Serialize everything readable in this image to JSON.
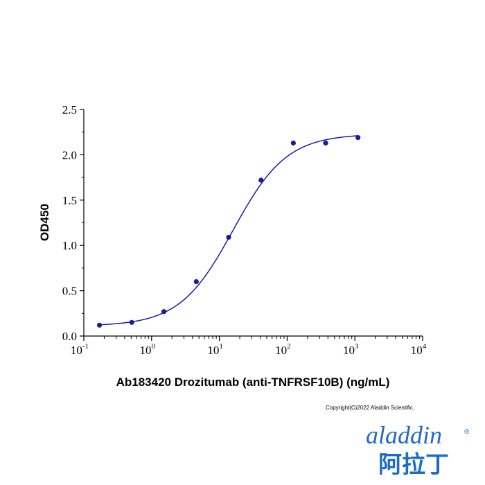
{
  "chart_data": {
    "type": "scatter",
    "title": "",
    "xlabel": "Ab183420 Drozitumab (anti-TNFRSF10B) (ng/mL)",
    "ylabel": "OD450",
    "x_scale": "log",
    "xlim": [
      0.1,
      10000
    ],
    "ylim": [
      0,
      2.5
    ],
    "x_ticks": [
      {
        "base": "10",
        "exp": "-1",
        "value": 0.1
      },
      {
        "base": "10",
        "exp": "0",
        "value": 1
      },
      {
        "base": "10",
        "exp": "1",
        "value": 10
      },
      {
        "base": "10",
        "exp": "2",
        "value": 100
      },
      {
        "base": "10",
        "exp": "3",
        "value": 1000
      },
      {
        "base": "10",
        "exp": "4",
        "value": 10000
      }
    ],
    "y_ticks": [
      "0.0",
      "0.5",
      "1.0",
      "1.5",
      "2.0",
      "2.5"
    ],
    "grid": false,
    "color": "#1a1aa6",
    "series": [
      {
        "x": [
          0.17,
          0.51,
          1.52,
          4.57,
          13.7,
          41.2,
          123.5,
          370.4,
          1111
        ],
        "y": [
          0.12,
          0.15,
          0.27,
          0.6,
          1.09,
          1.72,
          2.13,
          2.13,
          2.19
        ]
      }
    ],
    "fit": {
      "bottom": 0.11,
      "top": 2.23,
      "ec50": 16,
      "hill": 1.1
    }
  },
  "footer": {
    "copyright": "Copyright(C)2022 Aladdin Scientific."
  },
  "logo": {
    "text_latin": "aladdin",
    "text_chinese": "阿拉丁",
    "registered": "®",
    "color": "#1e6bc4"
  }
}
